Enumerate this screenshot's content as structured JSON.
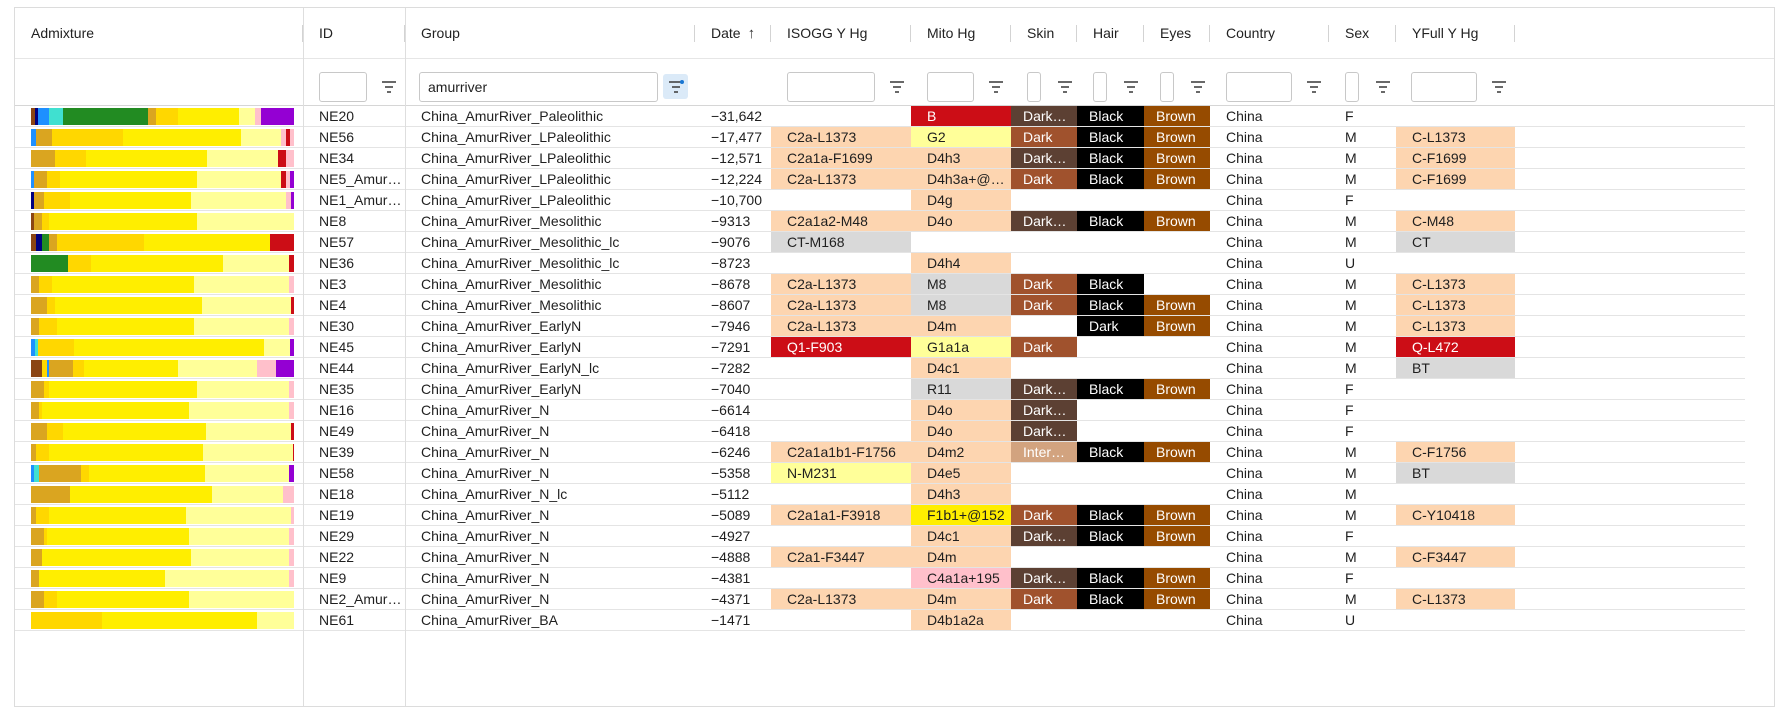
{
  "columns": [
    "Admixture",
    "ID",
    "Group",
    "Date",
    "ISOGG Y Hg",
    "Mito Hg",
    "Skin",
    "Hair",
    "Eyes",
    "Country",
    "Sex",
    "YFull Y Hg"
  ],
  "sort": {
    "column": "Date",
    "icon": "arrow-up-icon"
  },
  "filters": {
    "group": "amurriver"
  },
  "palette": {
    "peach": "#fdd5b0",
    "red": "#cc0d16",
    "lightyellow": "#ffff99",
    "grey": "#d9d9d9",
    "yellow": "#ffee00",
    "pink": "#ffc0cb",
    "darkbrown": "#5c4033",
    "brown": "#a0522d",
    "tan": "#d2a37f",
    "black": "#000000",
    "eyebrown": "#964b00"
  },
  "admix_colors": {
    "yel": "#ffee00",
    "pale": "#ffff99",
    "gold": "#ffd700",
    "amber": "#daa520",
    "brn": "#8b4513",
    "nav": "#000080",
    "blue": "#1e90ff",
    "cyan": "#40e0d0",
    "grn": "#228b22",
    "pink": "#ffc0cb",
    "red": "#cc0d16",
    "purp": "#9400d3",
    "lgrn": "#7cb342"
  },
  "rows": [
    {
      "admix": [
        [
          "brn",
          1.5
        ],
        [
          "nav",
          1
        ],
        [
          "blue",
          4
        ],
        [
          "cyan",
          5
        ],
        [
          "grn",
          31
        ],
        [
          "amber",
          3
        ],
        [
          "gold",
          8
        ],
        [
          "yel",
          22
        ],
        [
          "pale",
          6
        ],
        [
          "pink",
          2
        ],
        [
          "purp",
          12
        ]
      ],
      "id": "NE20",
      "group": "China_AmurRiver_Paleolithic",
      "date": "−31,642",
      "isogg": "",
      "isogg_c": "",
      "mito": "B",
      "mito_c": "red",
      "skin": "Dark…",
      "skin_c": "darkbrown",
      "hair": "Black",
      "hair_c": "black",
      "eyes": "Brown",
      "eyes_c": "eyebrown",
      "country": "China",
      "sex": "F",
      "yfull": "",
      "yfull_c": ""
    },
    {
      "admix": [
        [
          "blue",
          2
        ],
        [
          "amber",
          6
        ],
        [
          "gold",
          27
        ],
        [
          "yel",
          45
        ],
        [
          "pale",
          15
        ],
        [
          "pink",
          2
        ],
        [
          "red",
          1.5
        ],
        [
          "pink",
          1.5
        ]
      ],
      "id": "NE56",
      "group": "China_AmurRiver_LPaleolithic",
      "date": "−17,477",
      "isogg": "C2a-L1373",
      "isogg_c": "peach",
      "mito": "G2",
      "mito_c": "lightyellow",
      "skin": "Dark",
      "skin_c": "brown",
      "hair": "Black",
      "hair_c": "black",
      "eyes": "Brown",
      "eyes_c": "eyebrown",
      "country": "China",
      "sex": "M",
      "yfull": "C-L1373",
      "yfull_c": "peach"
    },
    {
      "admix": [
        [
          "amber",
          9
        ],
        [
          "gold",
          12
        ],
        [
          "yel",
          46
        ],
        [
          "pale",
          27
        ],
        [
          "red",
          3
        ],
        [
          "pink",
          3
        ]
      ],
      "id": "NE34",
      "group": "China_AmurRiver_LPaleolithic",
      "date": "−12,571",
      "isogg": "C2a1a-F1699",
      "isogg_c": "peach",
      "mito": "D4h3",
      "mito_c": "peach",
      "skin": "Dark…",
      "skin_c": "darkbrown",
      "hair": "Black",
      "hair_c": "black",
      "eyes": "Brown",
      "eyes_c": "eyebrown",
      "country": "China",
      "sex": "M",
      "yfull": "C-F1699",
      "yfull_c": "peach"
    },
    {
      "admix": [
        [
          "blue",
          1
        ],
        [
          "amber",
          5
        ],
        [
          "gold",
          5
        ],
        [
          "yel",
          52
        ],
        [
          "pale",
          32
        ],
        [
          "red",
          2
        ],
        [
          "pink",
          1.5
        ],
        [
          "purp",
          1.5
        ]
      ],
      "id": "NE5_Amur…",
      "group": "China_AmurRiver_LPaleolithic",
      "date": "−12,224",
      "isogg": "C2a-L1373",
      "isogg_c": "peach",
      "mito": "D4h3a+@1…",
      "mito_c": "peach",
      "skin": "Dark",
      "skin_c": "brown",
      "hair": "Black",
      "hair_c": "black",
      "eyes": "Brown",
      "eyes_c": "eyebrown",
      "country": "China",
      "sex": "M",
      "yfull": "C-F1699",
      "yfull_c": "peach"
    },
    {
      "admix": [
        [
          "nav",
          1
        ],
        [
          "amber",
          4
        ],
        [
          "gold",
          10
        ],
        [
          "yel",
          46
        ],
        [
          "pale",
          36
        ],
        [
          "pink",
          2
        ],
        [
          "purp",
          1
        ]
      ],
      "id": "NE1_Amur…",
      "group": "China_AmurRiver_LPaleolithic",
      "date": "−10,700",
      "isogg": "",
      "isogg_c": "",
      "mito": "D4g",
      "mito_c": "peach",
      "skin": "",
      "skin_c": "",
      "hair": "",
      "hair_c": "",
      "eyes": "",
      "eyes_c": "",
      "country": "China",
      "sex": "F",
      "yfull": "",
      "yfull_c": ""
    },
    {
      "admix": [
        [
          "brn",
          1
        ],
        [
          "amber",
          3
        ],
        [
          "gold",
          3
        ],
        [
          "yel",
          56
        ],
        [
          "pale",
          37
        ]
      ],
      "id": "NE8",
      "group": "China_AmurRiver_Mesolithic",
      "date": "−9313",
      "isogg": "C2a1a2-M48",
      "isogg_c": "peach",
      "mito": "D4o",
      "mito_c": "peach",
      "skin": "Dark…",
      "skin_c": "darkbrown",
      "hair": "Black",
      "hair_c": "black",
      "eyes": "Brown",
      "eyes_c": "eyebrown",
      "country": "China",
      "sex": "M",
      "yfull": "C-M48",
      "yfull_c": "peach"
    },
    {
      "admix": [
        [
          "brn",
          2
        ],
        [
          "nav",
          2
        ],
        [
          "grn",
          3
        ],
        [
          "amber",
          3
        ],
        [
          "gold",
          33
        ],
        [
          "yel",
          48
        ],
        [
          "red",
          9
        ]
      ],
      "id": "NE57",
      "group": "China_AmurRiver_Mesolithic_lc",
      "date": "−9076",
      "isogg": "CT-M168",
      "isogg_c": "grey",
      "mito": "",
      "mito_c": "",
      "skin": "",
      "skin_c": "",
      "hair": "",
      "hair_c": "",
      "eyes": "",
      "eyes_c": "",
      "country": "China",
      "sex": "M",
      "yfull": "CT",
      "yfull_c": "grey"
    },
    {
      "admix": [
        [
          "grn",
          14
        ],
        [
          "gold",
          9
        ],
        [
          "yel",
          50
        ],
        [
          "pale",
          25
        ],
        [
          "red",
          2
        ]
      ],
      "id": "NE36",
      "group": "China_AmurRiver_Mesolithic_lc",
      "date": "−8723",
      "isogg": "",
      "isogg_c": "",
      "mito": "D4h4",
      "mito_c": "peach",
      "skin": "",
      "skin_c": "",
      "hair": "",
      "hair_c": "",
      "eyes": "",
      "eyes_c": "",
      "country": "China",
      "sex": "U",
      "yfull": "",
      "yfull_c": ""
    },
    {
      "admix": [
        [
          "amber",
          3
        ],
        [
          "gold",
          5
        ],
        [
          "yel",
          54
        ],
        [
          "pale",
          36
        ],
        [
          "pink",
          2
        ]
      ],
      "id": "NE3",
      "group": "China_AmurRiver_Mesolithic",
      "date": "−8678",
      "isogg": "C2a-L1373",
      "isogg_c": "peach",
      "mito": "M8",
      "mito_c": "grey",
      "skin": "Dark",
      "skin_c": "brown",
      "hair": "Black",
      "hair_c": "black",
      "eyes": "",
      "eyes_c": "",
      "country": "China",
      "sex": "M",
      "yfull": "C-L1373",
      "yfull_c": "peach"
    },
    {
      "admix": [
        [
          "amber",
          6
        ],
        [
          "gold",
          3
        ],
        [
          "yel",
          56
        ],
        [
          "pale",
          34
        ],
        [
          "red",
          1
        ]
      ],
      "id": "NE4",
      "group": "China_AmurRiver_Mesolithic",
      "date": "−8607",
      "isogg": "C2a-L1373",
      "isogg_c": "peach",
      "mito": "M8",
      "mito_c": "grey",
      "skin": "Dark",
      "skin_c": "brown",
      "hair": "Black",
      "hair_c": "black",
      "eyes": "Brown",
      "eyes_c": "eyebrown",
      "country": "China",
      "sex": "M",
      "yfull": "C-L1373",
      "yfull_c": "peach"
    },
    {
      "admix": [
        [
          "amber",
          3
        ],
        [
          "gold",
          7
        ],
        [
          "yel",
          52
        ],
        [
          "pale",
          36
        ],
        [
          "pink",
          2
        ]
      ],
      "id": "NE30",
      "group": "China_AmurRiver_EarlyN",
      "date": "−7946",
      "isogg": "C2a-L1373",
      "isogg_c": "peach",
      "mito": "D4m",
      "mito_c": "peach",
      "skin": "",
      "skin_c": "",
      "hair": "Dark",
      "hair_c": "black",
      "eyes": "Brown",
      "eyes_c": "eyebrown",
      "country": "China",
      "sex": "M",
      "yfull": "C-L1373",
      "yfull_c": "peach"
    },
    {
      "admix": [
        [
          "blue",
          1.5
        ],
        [
          "cyan",
          1
        ],
        [
          "gold",
          14
        ],
        [
          "yel",
          72
        ],
        [
          "pale",
          10
        ],
        [
          "purp",
          1.5
        ]
      ],
      "id": "NE45",
      "group": "China_AmurRiver_EarlyN",
      "date": "−7291",
      "isogg": "Q1-F903",
      "isogg_c": "red",
      "mito": "G1a1a",
      "mito_c": "lightyellow",
      "skin": "Dark",
      "skin_c": "brown",
      "hair": "",
      "hair_c": "",
      "eyes": "",
      "eyes_c": "",
      "country": "China",
      "sex": "M",
      "yfull": "Q-L472",
      "yfull_c": "red"
    },
    {
      "admix": [
        [
          "brn",
          4
        ],
        [
          "gold",
          2
        ],
        [
          "blue",
          1
        ],
        [
          "amber",
          9
        ],
        [
          "gold",
          4
        ],
        [
          "yel",
          36
        ],
        [
          "pale",
          30
        ],
        [
          "pink",
          7
        ],
        [
          "purp",
          7
        ]
      ],
      "id": "NE44",
      "group": "China_AmurRiver_EarlyN_lc",
      "date": "−7282",
      "isogg": "",
      "isogg_c": "",
      "mito": "D4c1",
      "mito_c": "peach",
      "skin": "",
      "skin_c": "",
      "hair": "",
      "hair_c": "",
      "eyes": "",
      "eyes_c": "",
      "country": "China",
      "sex": "M",
      "yfull": "BT",
      "yfull_c": "grey"
    },
    {
      "admix": [
        [
          "amber",
          5
        ],
        [
          "gold",
          2
        ],
        [
          "yel",
          56
        ],
        [
          "pale",
          35
        ],
        [
          "pink",
          2
        ]
      ],
      "id": "NE35",
      "group": "China_AmurRiver_EarlyN",
      "date": "−7040",
      "isogg": "",
      "isogg_c": "",
      "mito": "R11",
      "mito_c": "grey",
      "skin": "Dark…",
      "skin_c": "darkbrown",
      "hair": "Black",
      "hair_c": "black",
      "eyes": "Brown",
      "eyes_c": "eyebrown",
      "country": "China",
      "sex": "F",
      "yfull": "",
      "yfull_c": ""
    },
    {
      "admix": [
        [
          "amber",
          3
        ],
        [
          "gold",
          1
        ],
        [
          "yel",
          56
        ],
        [
          "pale",
          38
        ],
        [
          "pink",
          2
        ]
      ],
      "id": "NE16",
      "group": "China_AmurRiver_N",
      "date": "−6614",
      "isogg": "",
      "isogg_c": "",
      "mito": "D4o",
      "mito_c": "peach",
      "skin": "Dark…",
      "skin_c": "darkbrown",
      "hair": "",
      "hair_c": "",
      "eyes": "",
      "eyes_c": "",
      "country": "China",
      "sex": "F",
      "yfull": "",
      "yfull_c": ""
    },
    {
      "admix": [
        [
          "amber",
          6
        ],
        [
          "gold",
          6
        ],
        [
          "yel",
          54
        ],
        [
          "pale",
          32
        ],
        [
          "red",
          1
        ]
      ],
      "id": "NE49",
      "group": "China_AmurRiver_N",
      "date": "−6418",
      "isogg": "",
      "isogg_c": "",
      "mito": "D4o",
      "mito_c": "peach",
      "skin": "Dark…",
      "skin_c": "darkbrown",
      "hair": "",
      "hair_c": "",
      "eyes": "",
      "eyes_c": "",
      "country": "China",
      "sex": "F",
      "yfull": "",
      "yfull_c": ""
    },
    {
      "admix": [
        [
          "amber",
          2
        ],
        [
          "gold",
          5
        ],
        [
          "yel",
          58
        ],
        [
          "pale",
          34
        ],
        [
          "red",
          0.5
        ]
      ],
      "id": "NE39",
      "group": "China_AmurRiver_N",
      "date": "−6246",
      "isogg": "C2a1a1b1-F1756",
      "isogg_c": "peach",
      "mito": "D4m2",
      "mito_c": "peach",
      "skin": "Inter…",
      "skin_c": "tan",
      "hair": "Black",
      "hair_c": "black",
      "eyes": "Brown",
      "eyes_c": "eyebrown",
      "country": "China",
      "sex": "M",
      "yfull": "C-F1756",
      "yfull_c": "peach"
    },
    {
      "admix": [
        [
          "blue",
          1
        ],
        [
          "cyan",
          2
        ],
        [
          "amber",
          16
        ],
        [
          "gold",
          3
        ],
        [
          "yel",
          44
        ],
        [
          "pale",
          32
        ],
        [
          "purp",
          2
        ]
      ],
      "id": "NE58",
      "group": "China_AmurRiver_N",
      "date": "−5358",
      "isogg": "N-M231",
      "isogg_c": "lightyellow",
      "mito": "D4e5",
      "mito_c": "peach",
      "skin": "",
      "skin_c": "",
      "hair": "",
      "hair_c": "",
      "eyes": "",
      "eyes_c": "",
      "country": "China",
      "sex": "M",
      "yfull": "BT",
      "yfull_c": "grey"
    },
    {
      "admix": [
        [
          "amber",
          15
        ],
        [
          "yel",
          54
        ],
        [
          "pale",
          27
        ],
        [
          "pink",
          4
        ]
      ],
      "id": "NE18",
      "group": "China_AmurRiver_N_lc",
      "date": "−5112",
      "isogg": "",
      "isogg_c": "",
      "mito": "D4h3",
      "mito_c": "peach",
      "skin": "",
      "skin_c": "",
      "hair": "",
      "hair_c": "",
      "eyes": "",
      "eyes_c": "",
      "country": "China",
      "sex": "M",
      "yfull": "",
      "yfull_c": ""
    },
    {
      "admix": [
        [
          "amber",
          2
        ],
        [
          "gold",
          5
        ],
        [
          "yel",
          52
        ],
        [
          "pale",
          40
        ],
        [
          "pink",
          1
        ]
      ],
      "id": "NE19",
      "group": "China_AmurRiver_N",
      "date": "−5089",
      "isogg": "C2a1a1-F3918",
      "isogg_c": "peach",
      "mito": "F1b1+@152",
      "mito_c": "yellow",
      "skin": "Dark",
      "skin_c": "brown",
      "hair": "Black",
      "hair_c": "black",
      "eyes": "Brown",
      "eyes_c": "eyebrown",
      "country": "China",
      "sex": "M",
      "yfull": "C-Y10418",
      "yfull_c": "peach"
    },
    {
      "admix": [
        [
          "amber",
          5
        ],
        [
          "gold",
          1
        ],
        [
          "yel",
          54
        ],
        [
          "pale",
          38
        ],
        [
          "pink",
          2
        ]
      ],
      "id": "NE29",
      "group": "China_AmurRiver_N",
      "date": "−4927",
      "isogg": "",
      "isogg_c": "",
      "mito": "D4c1",
      "mito_c": "peach",
      "skin": "Dark…",
      "skin_c": "darkbrown",
      "hair": "Black",
      "hair_c": "black",
      "eyes": "Brown",
      "eyes_c": "eyebrown",
      "country": "China",
      "sex": "F",
      "yfull": "",
      "yfull_c": ""
    },
    {
      "admix": [
        [
          "amber",
          4
        ],
        [
          "yel",
          57
        ],
        [
          "pale",
          37
        ],
        [
          "pink",
          2
        ]
      ],
      "id": "NE22",
      "group": "China_AmurRiver_N",
      "date": "−4888",
      "isogg": "C2a1-F3447",
      "isogg_c": "peach",
      "mito": "D4m",
      "mito_c": "peach",
      "skin": "",
      "skin_c": "",
      "hair": "",
      "hair_c": "",
      "eyes": "",
      "eyes_c": "",
      "country": "China",
      "sex": "M",
      "yfull": "C-F3447",
      "yfull_c": "peach"
    },
    {
      "admix": [
        [
          "amber",
          3
        ],
        [
          "yel",
          48
        ],
        [
          "pale",
          47
        ],
        [
          "pink",
          2
        ]
      ],
      "id": "NE9",
      "group": "China_AmurRiver_N",
      "date": "−4381",
      "isogg": "",
      "isogg_c": "",
      "mito": "C4a1a+195",
      "mito_c": "pink",
      "skin": "Dark…",
      "skin_c": "darkbrown",
      "hair": "Black",
      "hair_c": "black",
      "eyes": "Brown",
      "eyes_c": "eyebrown",
      "country": "China",
      "sex": "F",
      "yfull": "",
      "yfull_c": ""
    },
    {
      "admix": [
        [
          "amber",
          5
        ],
        [
          "gold",
          5
        ],
        [
          "yel",
          50
        ],
        [
          "pale",
          40
        ]
      ],
      "id": "NE2_Amur…",
      "group": "China_AmurRiver_N",
      "date": "−4371",
      "isogg": "C2a-L1373",
      "isogg_c": "peach",
      "mito": "D4m",
      "mito_c": "peach",
      "skin": "Dark",
      "skin_c": "brown",
      "hair": "Black",
      "hair_c": "black",
      "eyes": "Brown",
      "eyes_c": "eyebrown",
      "country": "China",
      "sex": "M",
      "yfull": "C-L1373",
      "yfull_c": "peach"
    },
    {
      "admix": [
        [
          "gold",
          27
        ],
        [
          "yel",
          59
        ],
        [
          "pale",
          14
        ]
      ],
      "id": "NE61",
      "group": "China_AmurRiver_BA",
      "date": "−1471",
      "isogg": "",
      "isogg_c": "",
      "mito": "D4b1a2a",
      "mito_c": "peach",
      "skin": "",
      "skin_c": "",
      "hair": "",
      "hair_c": "",
      "eyes": "",
      "eyes_c": "",
      "country": "China",
      "sex": "U",
      "yfull": "",
      "yfull_c": ""
    }
  ]
}
